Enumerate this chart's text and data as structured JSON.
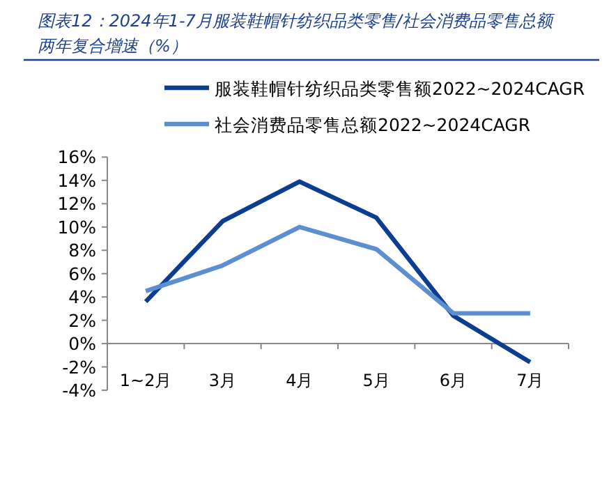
{
  "chart_data": {
    "type": "line",
    "title": "图表12：2024年1-7月服装鞋帽针纺织品类零售/社会消费品零售总额两年复合增速（%）",
    "categories": [
      "1~2月",
      "3月",
      "4月",
      "5月",
      "6月",
      "7月"
    ],
    "series": [
      {
        "name": "服装鞋帽针纺织品类零售额2022~2024CAGR",
        "color": "#0b3d91",
        "values": [
          3.6,
          10.5,
          13.9,
          10.8,
          2.4,
          -1.6
        ]
      },
      {
        "name": "社会消费品零售总额2022~2024CAGR",
        "color": "#5b8fd1",
        "values": [
          4.5,
          6.7,
          10.0,
          8.1,
          2.6,
          2.6
        ]
      }
    ],
    "ylim": [
      -4,
      16
    ],
    "yticks": [
      {
        "value": -4,
        "label": "-4%"
      },
      {
        "value": -2,
        "label": "-2%"
      },
      {
        "value": 0,
        "label": "0%"
      },
      {
        "value": 2,
        "label": "2%"
      },
      {
        "value": 4,
        "label": "4%"
      },
      {
        "value": 6,
        "label": "6%"
      },
      {
        "value": 8,
        "label": "8%"
      },
      {
        "value": 10,
        "label": "10%"
      },
      {
        "value": 12,
        "label": "12%"
      },
      {
        "value": 14,
        "label": "14%"
      },
      {
        "value": 16,
        "label": "16%"
      }
    ],
    "grid": false,
    "legend": "top",
    "marker": "none",
    "line_style": "solid"
  }
}
